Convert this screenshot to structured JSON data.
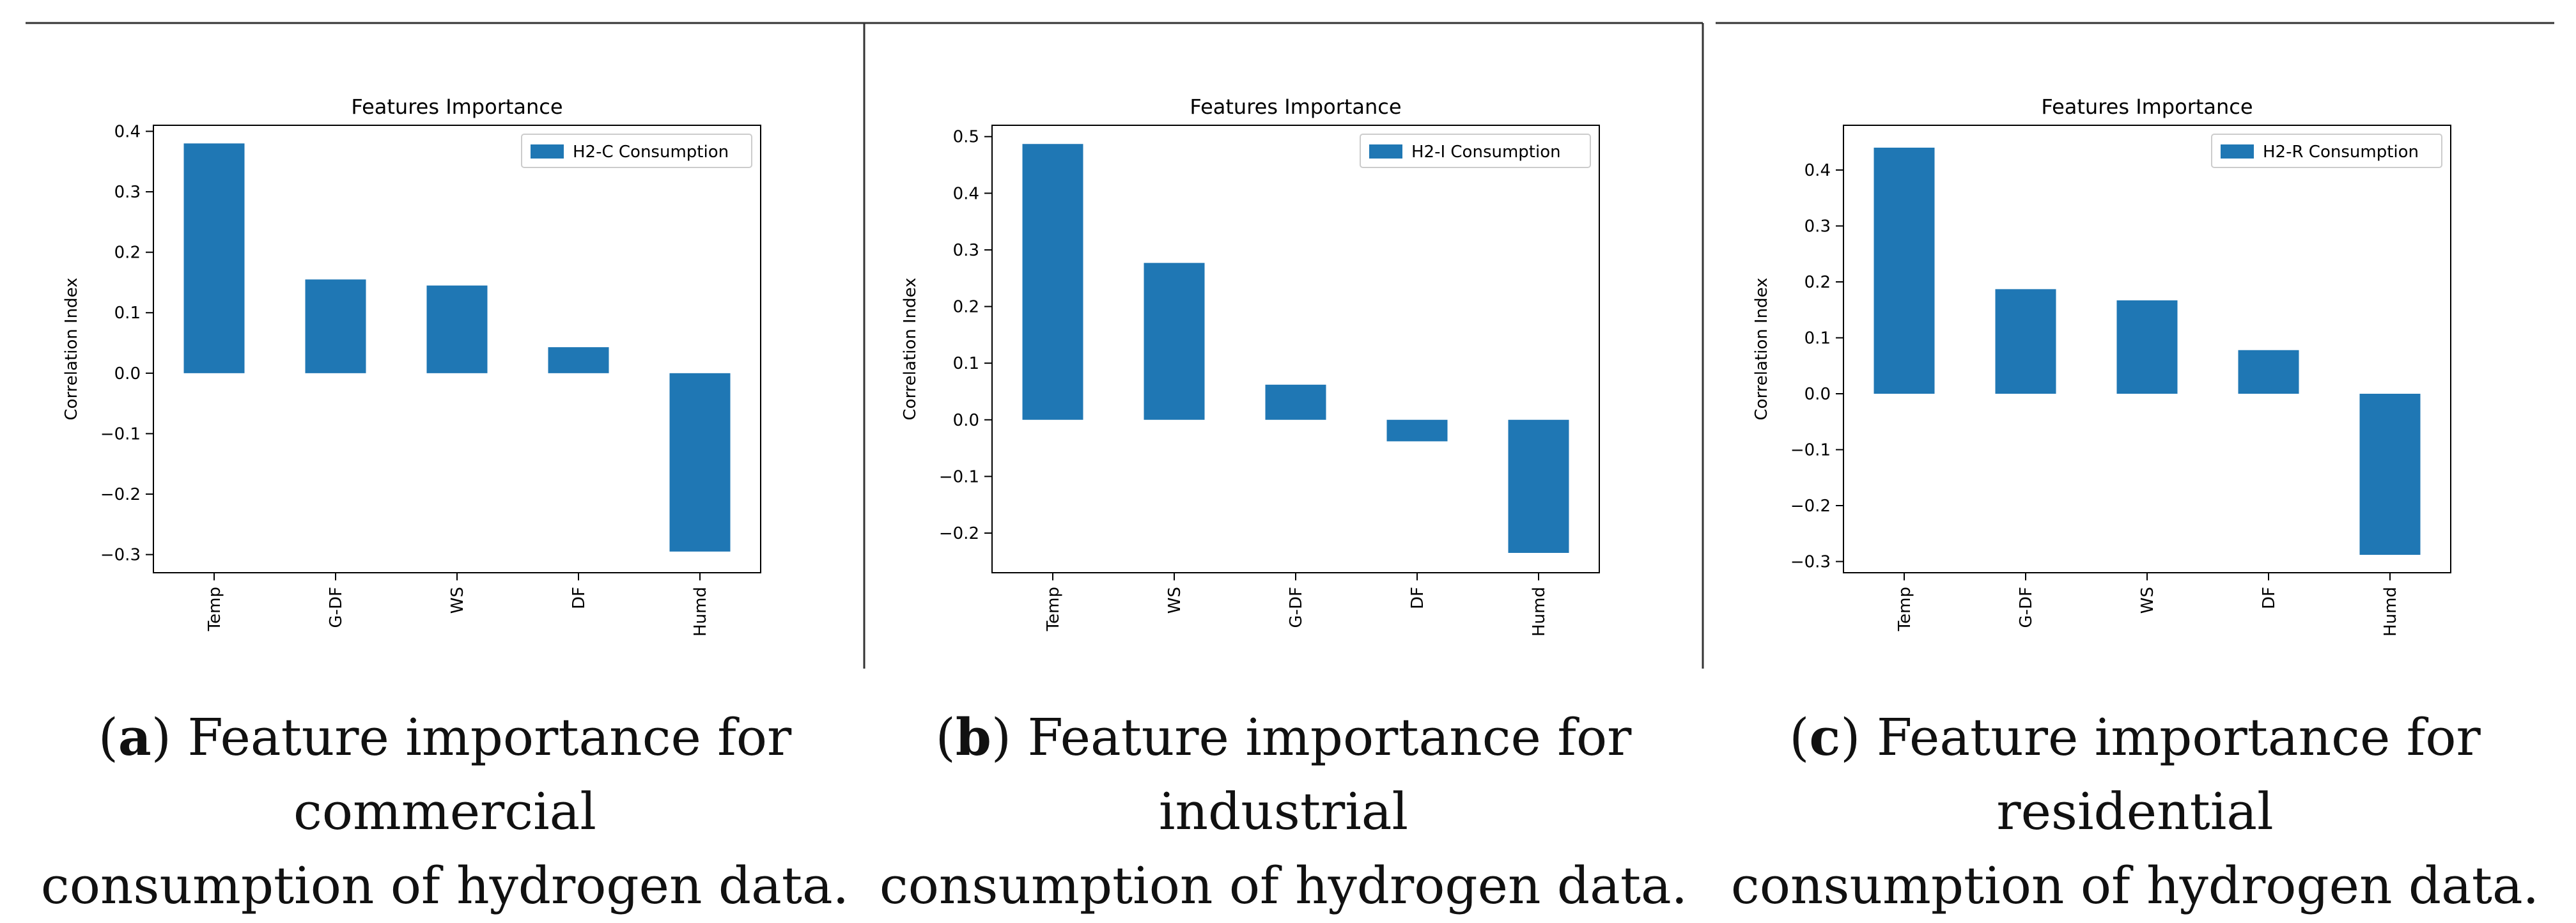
{
  "colors": {
    "bar": "#1f77b4",
    "axis": "#000000",
    "frame": "#333333"
  },
  "chart_data": [
    {
      "type": "bar",
      "title": "Features Importance",
      "ylabel": "Correlation Index",
      "xlabel": "",
      "legend": "H2-C Consumption",
      "legend_position": "top-right",
      "categories": [
        "Temp",
        "G-DF",
        "WS",
        "DF",
        "Humd"
      ],
      "values": [
        0.38,
        0.155,
        0.145,
        0.043,
        -0.295
      ],
      "ylim": [
        -0.33,
        0.41
      ],
      "yticks": [
        -0.3,
        -0.2,
        -0.1,
        0.0,
        0.1,
        0.2,
        0.3,
        0.4
      ],
      "ytick_labels": [
        "−0.3",
        "−0.2",
        "−0.1",
        "0.0",
        "0.1",
        "0.2",
        "0.3",
        "0.4"
      ]
    },
    {
      "type": "bar",
      "title": "Features Importance",
      "ylabel": "Correlation Index",
      "xlabel": "",
      "legend": "H2-I Consumption",
      "legend_position": "top-right",
      "categories": [
        "Temp",
        "WS",
        "G-DF",
        "DF",
        "Humd"
      ],
      "values": [
        0.487,
        0.277,
        0.062,
        -0.038,
        -0.235
      ],
      "ylim": [
        -0.27,
        0.52
      ],
      "yticks": [
        -0.2,
        -0.1,
        0.0,
        0.1,
        0.2,
        0.3,
        0.4,
        0.5
      ],
      "ytick_labels": [
        "−0.2",
        "−0.1",
        "0.0",
        "0.1",
        "0.2",
        "0.3",
        "0.4",
        "0.5"
      ]
    },
    {
      "type": "bar",
      "title": "Features Importance",
      "ylabel": "Correlation Index",
      "xlabel": "",
      "legend": "H2-R Consumption",
      "legend_position": "top-right",
      "categories": [
        "Temp",
        "G-DF",
        "WS",
        "DF",
        "Humd"
      ],
      "values": [
        0.44,
        0.187,
        0.167,
        0.078,
        -0.288
      ],
      "ylim": [
        -0.32,
        0.48
      ],
      "yticks": [
        -0.3,
        -0.2,
        -0.1,
        0.0,
        0.1,
        0.2,
        0.3,
        0.4
      ],
      "ytick_labels": [
        "−0.3",
        "−0.2",
        "−0.1",
        "0.0",
        "0.1",
        "0.2",
        "0.3",
        "0.4"
      ]
    }
  ],
  "captions": [
    {
      "label": "a",
      "text_line1": " Feature importance for commercial",
      "text_line2": "consumption of hydrogen data."
    },
    {
      "label": "b",
      "text_line1": " Feature importance for industrial",
      "text_line2": "consumption of hydrogen data."
    },
    {
      "label": "c",
      "text_line1": " Feature importance for residential",
      "text_line2": "consumption of hydrogen data."
    }
  ]
}
